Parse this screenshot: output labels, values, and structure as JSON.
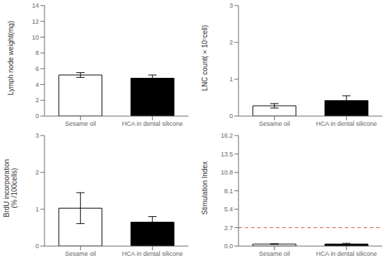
{
  "chart_data": [
    {
      "type": "bar",
      "ylabel": "Lymph node weight(mg)",
      "categories": [
        "Sesame oil",
        "HCA in dental silicone"
      ],
      "values": [
        5.2,
        4.8
      ],
      "errors": [
        0.3,
        0.4
      ],
      "colors": [
        "white",
        "black"
      ],
      "edgecolor": "black",
      "ylim": [
        0,
        14
      ],
      "yticks": [
        0,
        2,
        4,
        6,
        8,
        10,
        12,
        14
      ]
    },
    {
      "type": "bar",
      "ylabel": "LNC count(×10⁷cell)",
      "categories": [
        "Sesame oil",
        "HCA in dental silicone"
      ],
      "values": [
        0.28,
        0.42
      ],
      "errors": [
        0.06,
        0.13
      ],
      "colors": [
        "white",
        "black"
      ],
      "edgecolor": "black",
      "ylim": [
        0,
        3
      ],
      "yticks": [
        0,
        1,
        2,
        3
      ]
    },
    {
      "type": "bar",
      "ylabel": "BrdU incorporation\n(% /100cells)",
      "categories": [
        "Sesame oil",
        "HCA in dental silicone"
      ],
      "values": [
        1.03,
        0.65
      ],
      "errors": [
        0.42,
        0.15
      ],
      "colors": [
        "white",
        "black"
      ],
      "edgecolor": "black",
      "ylim": [
        0,
        3
      ],
      "yticks": [
        0,
        1,
        2,
        3
      ]
    },
    {
      "type": "bar",
      "ylabel": "Stimulation Index",
      "categories": [
        "Sesame oil",
        "HCA in dental silicone"
      ],
      "values": [
        0.3,
        0.3
      ],
      "errors": [
        0.04,
        0.1
      ],
      "colors": [
        "white",
        "black"
      ],
      "edgecolor": "black",
      "ylim": [
        0,
        16.2
      ],
      "yticks": [
        {
          "value": 0,
          "label": "0.0"
        },
        2.7,
        5.4,
        8.1,
        10.8,
        13.5,
        16.2
      ],
      "hline": {
        "value": 2.7,
        "color": "#d9534f",
        "line_style": "dashed"
      }
    }
  ]
}
